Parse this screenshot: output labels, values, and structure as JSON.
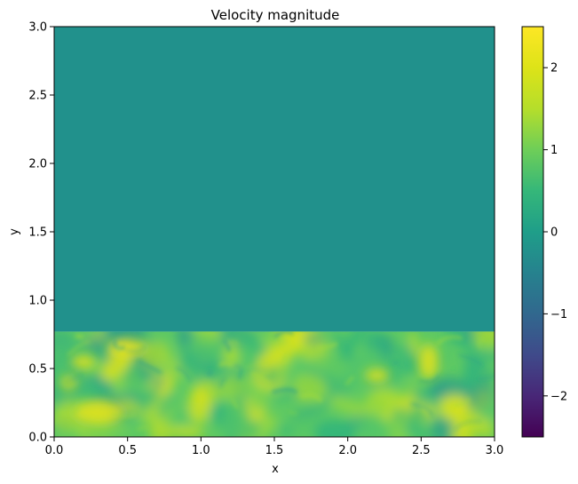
{
  "chart_data": {
    "type": "heatmap",
    "title": "Velocity magnitude",
    "xlabel": "x",
    "ylabel": "y",
    "xlim": [
      0.0,
      3.0
    ],
    "ylim": [
      0.0,
      3.0
    ],
    "x_ticks": [
      "0.0",
      "0.5",
      "1.0",
      "1.5",
      "2.0",
      "2.5",
      "3.0"
    ],
    "y_ticks": [
      "0.0",
      "0.5",
      "1.0",
      "1.5",
      "2.0",
      "2.5",
      "3.0"
    ],
    "colormap": "viridis",
    "uniform_region": {
      "y_from": 0.77,
      "y_to": 3.0,
      "value": 0.0,
      "color": "#21918c"
    },
    "turbulent_band": {
      "y_from": 0.0,
      "y_to": 0.77,
      "value_range": [
        0.3,
        2.5
      ]
    },
    "colorbar": {
      "min": -2.5,
      "max": 2.5,
      "ticks": [
        {
          "value": 2,
          "label": "2"
        },
        {
          "value": 1,
          "label": "1"
        },
        {
          "value": 0,
          "label": "0"
        },
        {
          "value": -1,
          "label": "−1"
        },
        {
          "value": -2,
          "label": "−2"
        }
      ]
    },
    "grid": false
  }
}
